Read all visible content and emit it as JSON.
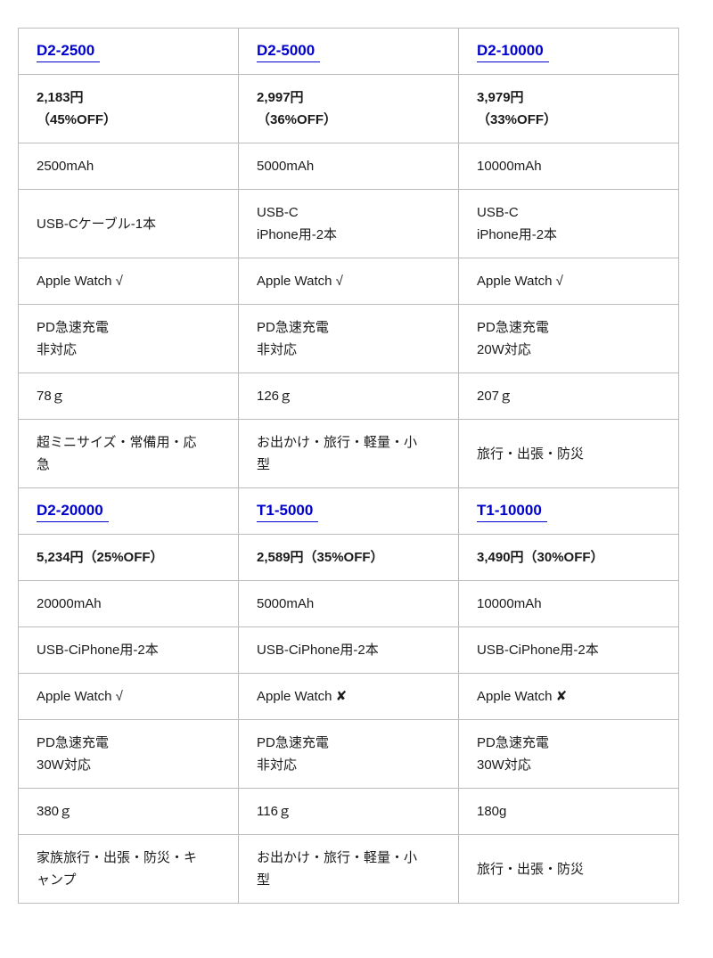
{
  "page": {
    "background": "#ffffff",
    "text_color": "#1b1b1b"
  },
  "table": {
    "name": "product-comparison-table",
    "link_color": "#0000cd",
    "border_color": "#bcbcbc",
    "check_mark": "√",
    "cross_mark": "✘",
    "rows": [
      {
        "name": "product-link-row-1",
        "kind": "link",
        "cells": [
          {
            "lines": [
              "D2-2500"
            ]
          },
          {
            "lines": [
              "D2-5000"
            ]
          },
          {
            "lines": [
              "D2-10000"
            ]
          }
        ]
      },
      {
        "name": "price-row-1",
        "kind": "price",
        "cells": [
          {
            "lines": [
              "2,183円",
              "（45%OFF）"
            ]
          },
          {
            "lines": [
              "2,997円",
              "（36%OFF）"
            ]
          },
          {
            "lines": [
              "3,979円",
              "（33%OFF）"
            ]
          }
        ]
      },
      {
        "name": "capacity-row-1",
        "kind": "text",
        "cells": [
          {
            "lines": [
              "2500mAh"
            ]
          },
          {
            "lines": [
              "5000mAh"
            ]
          },
          {
            "lines": [
              "10000mAh"
            ]
          }
        ]
      },
      {
        "name": "cable-row-1",
        "kind": "text",
        "cells": [
          {
            "lines": [
              "USB-Cケーブル-1本"
            ]
          },
          {
            "lines": [
              "USB-C",
              "iPhone用-2本"
            ]
          },
          {
            "lines": [
              "USB-C",
              "iPhone用-2本"
            ]
          }
        ]
      },
      {
        "name": "apple-watch-row-1",
        "kind": "text",
        "cells": [
          {
            "lines": [
              "Apple Watch √"
            ]
          },
          {
            "lines": [
              "Apple Watch √"
            ]
          },
          {
            "lines": [
              "Apple Watch √"
            ]
          }
        ]
      },
      {
        "name": "pd-charging-row-1",
        "kind": "text",
        "cells": [
          {
            "lines": [
              "PD急速充電",
              "非対応"
            ]
          },
          {
            "lines": [
              "PD急速充電",
              "非対応"
            ]
          },
          {
            "lines": [
              "PD急速充電",
              "20W対応"
            ]
          }
        ]
      },
      {
        "name": "weight-row-1",
        "kind": "text",
        "cells": [
          {
            "lines": [
              "78ｇ"
            ]
          },
          {
            "lines": [
              "126ｇ"
            ]
          },
          {
            "lines": [
              "207ｇ"
            ]
          }
        ]
      },
      {
        "name": "use-case-row-1",
        "kind": "text",
        "cells": [
          {
            "lines": [
              "超ミニサイズ・常備用・応",
              "急"
            ]
          },
          {
            "lines": [
              "お出かけ・旅行・軽量・小",
              "型"
            ]
          },
          {
            "lines": [
              "旅行・出張・防災"
            ]
          }
        ]
      },
      {
        "name": "product-link-row-2",
        "kind": "link",
        "cells": [
          {
            "lines": [
              "D2-20000"
            ]
          },
          {
            "lines": [
              "T1-5000"
            ]
          },
          {
            "lines": [
              "T1-10000"
            ]
          }
        ]
      },
      {
        "name": "price-row-2",
        "kind": "price",
        "cells": [
          {
            "lines": [
              "5,234円（25%OFF）"
            ]
          },
          {
            "lines": [
              "2,589円（35%OFF）"
            ]
          },
          {
            "lines": [
              "3,490円（30%OFF）"
            ]
          }
        ]
      },
      {
        "name": "capacity-row-2",
        "kind": "text",
        "cells": [
          {
            "lines": [
              "20000mAh"
            ]
          },
          {
            "lines": [
              "5000mAh"
            ]
          },
          {
            "lines": [
              "10000mAh"
            ]
          }
        ]
      },
      {
        "name": "cable-row-2",
        "kind": "text",
        "cells": [
          {
            "lines": [
              "USB-CiPhone用-2本"
            ]
          },
          {
            "lines": [
              "USB-CiPhone用-2本"
            ]
          },
          {
            "lines": [
              "USB-CiPhone用-2本"
            ]
          }
        ]
      },
      {
        "name": "apple-watch-row-2",
        "kind": "text",
        "cells": [
          {
            "lines": [
              "Apple Watch √"
            ]
          },
          {
            "lines": [
              "Apple Watch ✘"
            ]
          },
          {
            "lines": [
              "Apple Watch ✘"
            ]
          }
        ]
      },
      {
        "name": "pd-charging-row-2",
        "kind": "text",
        "cells": [
          {
            "lines": [
              "PD急速充電",
              "30W対応"
            ]
          },
          {
            "lines": [
              "PD急速充電",
              "非対応"
            ]
          },
          {
            "lines": [
              "PD急速充電",
              "30W対応"
            ]
          }
        ]
      },
      {
        "name": "weight-row-2",
        "kind": "text",
        "cells": [
          {
            "lines": [
              "380ｇ"
            ]
          },
          {
            "lines": [
              "116ｇ"
            ]
          },
          {
            "lines": [
              "180g"
            ]
          }
        ]
      },
      {
        "name": "use-case-row-2",
        "kind": "text",
        "cells": [
          {
            "lines": [
              "家族旅行・出張・防災・キ",
              "ャンプ"
            ]
          },
          {
            "lines": [
              "お出かけ・旅行・軽量・小",
              "型"
            ]
          },
          {
            "lines": [
              "旅行・出張・防災"
            ]
          }
        ]
      }
    ]
  }
}
